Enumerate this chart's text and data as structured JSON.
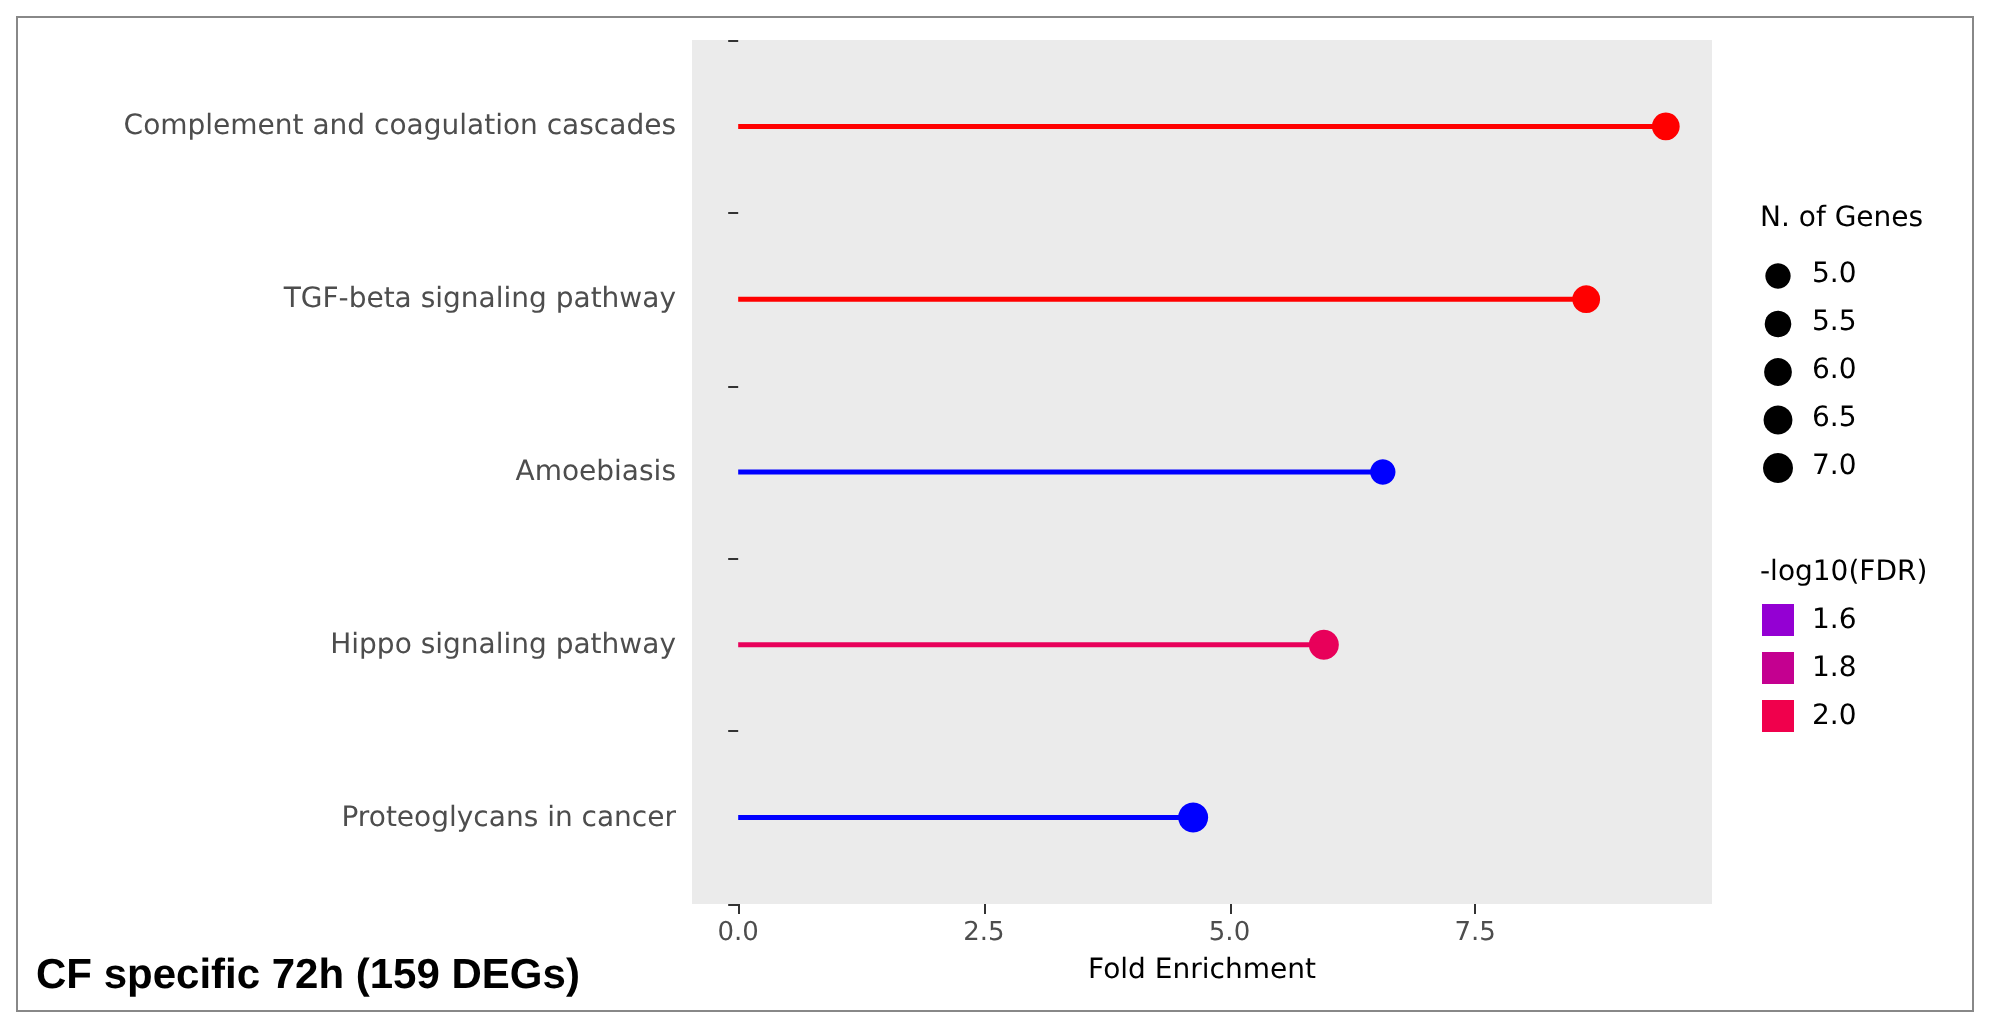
{
  "chart_data": {
    "type": "lollipop",
    "orientation": "horizontal",
    "xlabel": "Fold Enrichment",
    "categories": [
      "Complement and coagulation cascades",
      "TGF-beta signaling pathway",
      "Amoebiasis",
      "Hippo signaling pathway",
      "Proteoglycans in cancer"
    ],
    "values": [
      9.44,
      8.63,
      6.56,
      5.96,
      4.63
    ],
    "sizes": [
      6,
      6,
      5,
      7,
      7
    ],
    "colors": [
      "#ff0000",
      "#ff0000",
      "#0000ff",
      "#e8005a",
      "#0000ff"
    ],
    "xlim": [
      -0.47,
      9.91
    ],
    "xticks": [
      {
        "value": 0,
        "label": "0.0"
      },
      {
        "value": 2.5,
        "label": "2.5"
      },
      {
        "value": 5,
        "label": "5.0"
      },
      {
        "value": 7.5,
        "label": "7.5"
      }
    ],
    "legend_title": "N. of Genes",
    "size_legend": [
      {
        "value": 5,
        "label": "5.0"
      },
      {
        "value": 5.5,
        "label": "5.5"
      },
      {
        "value": 6,
        "label": "6.0"
      },
      {
        "value": 6.5,
        "label": "6.5"
      },
      {
        "value": 7,
        "label": "7.0"
      }
    ],
    "annotations": [
      "CF specific 72h (159 DEGs)",
      "-log10(FDR)",
      "1.6",
      "1.8",
      "2.0"
    ]
  }
}
